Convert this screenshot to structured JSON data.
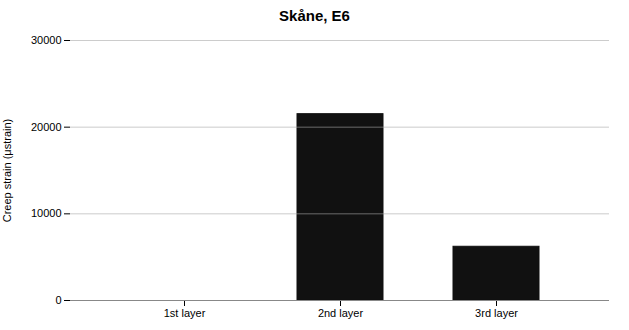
{
  "chart_data": {
    "type": "bar",
    "title": "Skåne, E6",
    "categories": [
      "1st layer",
      "2nd layer",
      "3rd layer"
    ],
    "values": [
      0,
      21500,
      6200
    ],
    "color": "#111111",
    "ylabel": "Creep strain (μstrain)",
    "ylim": [
      0,
      30000
    ],
    "yticks": [
      0,
      10000,
      20000,
      30000
    ],
    "grid": true
  }
}
